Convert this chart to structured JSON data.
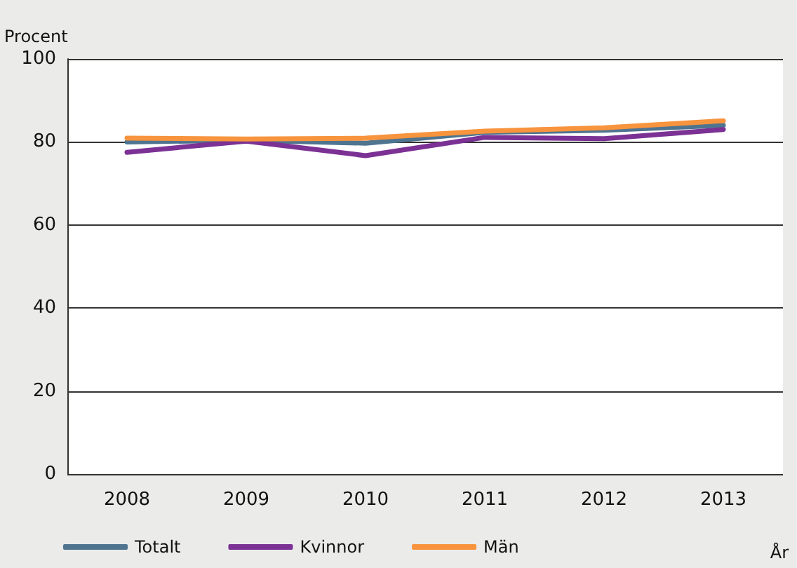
{
  "chart_data": {
    "type": "line",
    "ylabel": "Procent",
    "xlabel": "År",
    "categories": [
      "2008",
      "2009",
      "2010",
      "2011",
      "2012",
      "2013"
    ],
    "series": [
      {
        "name": "Totalt",
        "color": "#4f7490",
        "values": [
          80.0,
          80.4,
          79.7,
          82.3,
          82.8,
          84.0
        ]
      },
      {
        "name": "Kvinnor",
        "color": "#7b3294",
        "values": [
          77.5,
          80.2,
          76.7,
          81.1,
          80.8,
          83.0
        ]
      },
      {
        "name": "Män",
        "color": "#f7943d",
        "values": [
          80.9,
          80.7,
          80.9,
          82.6,
          83.4,
          85.1
        ]
      }
    ],
    "ylim": [
      0,
      100
    ],
    "yticks": [
      0,
      20,
      40,
      60,
      80,
      100
    ],
    "grid": "y",
    "legend": "bottom",
    "marker": "none",
    "line_style": "solid"
  }
}
